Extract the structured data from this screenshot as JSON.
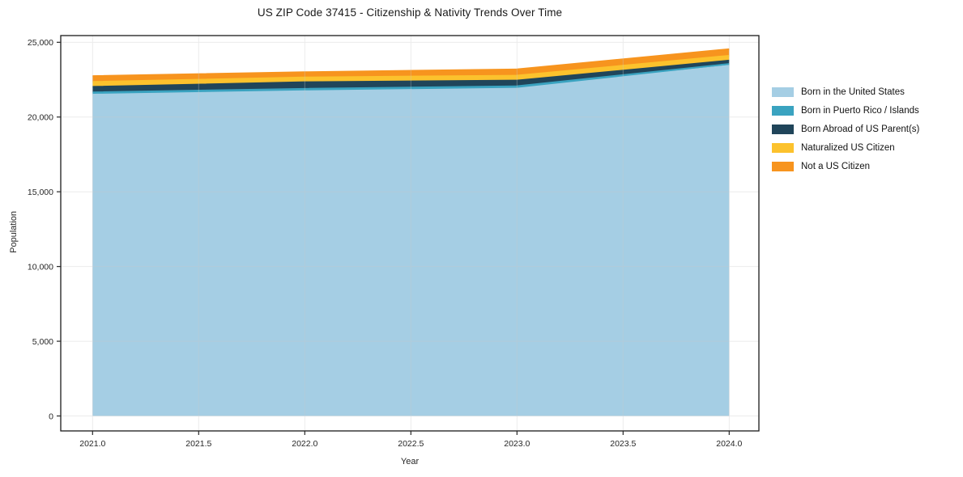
{
  "title": "US ZIP Code 37415 - Citizenship & Nativity Trends Over Time",
  "axes": {
    "x_label": "Year",
    "y_label": "Population"
  },
  "colors": {
    "background": "#ffffff",
    "spine": "#1a1a1a",
    "grid": "#c8c8c8",
    "tick_text": "#262626"
  },
  "chart_data": {
    "type": "area",
    "stacked": true,
    "title": "US ZIP Code 37415 - Citizenship & Nativity Trends Over Time",
    "xlabel": "Year",
    "ylabel": "Population",
    "x": [
      2021,
      2022,
      2023,
      2024
    ],
    "series": [
      {
        "name": "Born in the United States",
        "color": "#a5cee4",
        "values": [
          21500,
          21730,
          21900,
          23440
        ]
      },
      {
        "name": "Born in Puerto Rico / Islands",
        "color": "#3aa3c0",
        "values": [
          150,
          160,
          160,
          110
        ]
      },
      {
        "name": "Born Abroad of US Parent(s)",
        "color": "#20455a",
        "values": [
          370,
          440,
          380,
          230
        ]
      },
      {
        "name": "Naturalized US Citizen",
        "color": "#fcc22d",
        "values": [
          330,
          320,
          330,
          320
        ]
      },
      {
        "name": "Not a US Citizen",
        "color": "#f7941e",
        "values": [
          390,
          350,
          420,
          440
        ]
      }
    ],
    "totals": [
      22740,
      23000,
      23190,
      24540
    ],
    "x_ticks": [
      2021.0,
      2021.5,
      2022.0,
      2022.5,
      2023.0,
      2023.5,
      2024.0
    ],
    "x_tick_labels": [
      "2021.0",
      "2021.5",
      "2022.0",
      "2022.5",
      "2023.0",
      "2023.5",
      "2024.0"
    ],
    "y_ticks": [
      0,
      5000,
      10000,
      15000,
      20000,
      25000
    ],
    "y_tick_labels": [
      "0",
      "5,000",
      "10,000",
      "15,000",
      "20,000",
      "25,000"
    ],
    "xlim": [
      2020.85,
      2024.14
    ],
    "ylim": [
      -1000,
      25450
    ],
    "grid": true,
    "legend_position": "right"
  }
}
